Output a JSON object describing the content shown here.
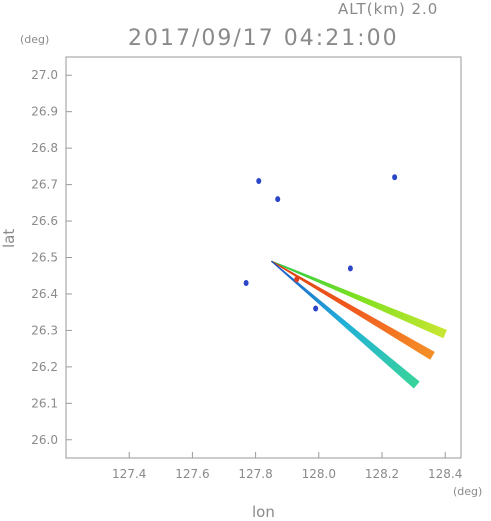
{
  "header": {
    "altitude_label": "ALT(km) 2.0",
    "datetime": "2017/09/17 04:21:00"
  },
  "chart_data": {
    "type": "scatter",
    "xlabel": "lon",
    "ylabel": "lat",
    "x_unit": "(deg)",
    "y_unit": "(deg)",
    "xlim": [
      127.2,
      128.45
    ],
    "ylim": [
      25.95,
      27.05
    ],
    "xticks": [
      "127.4",
      "127.6",
      "127.8",
      "128.0",
      "128.2",
      "128.4"
    ],
    "xtick_values": [
      127.4,
      127.6,
      127.8,
      128.0,
      128.2,
      128.4
    ],
    "yticks": [
      "26.0",
      "26.1",
      "26.2",
      "26.3",
      "26.4",
      "26.5",
      "26.6",
      "26.7",
      "26.8",
      "26.9",
      "27.0"
    ],
    "ytick_values": [
      26.0,
      26.1,
      26.2,
      26.3,
      26.4,
      26.5,
      26.6,
      26.7,
      26.8,
      26.9,
      27.0
    ],
    "origin": {
      "lon": 127.85,
      "lat": 26.49
    },
    "beams": [
      {
        "end": {
          "lon": 128.4,
          "lat": 26.29
        },
        "colors": [
          "#22c84a",
          "#7ee020",
          "#c8e632"
        ]
      },
      {
        "end": {
          "lon": 128.36,
          "lat": 26.23
        },
        "colors": [
          "#d84010",
          "#f05a1e",
          "#f59028"
        ]
      },
      {
        "end": {
          "lon": 128.31,
          "lat": 26.15
        },
        "colors": [
          "#1a50c8",
          "#22b0d8",
          "#38d49a"
        ]
      }
    ],
    "echoes": [
      {
        "lon": 127.81,
        "lat": 26.71,
        "color": "#2b45c8"
      },
      {
        "lon": 128.24,
        "lat": 26.72,
        "color": "#2b45c8"
      },
      {
        "lon": 127.77,
        "lat": 26.43,
        "color": "#2b45c8"
      },
      {
        "lon": 127.99,
        "lat": 26.36,
        "color": "#2b45c8"
      },
      {
        "lon": 127.93,
        "lat": 26.44,
        "color": "#e04020"
      },
      {
        "lon": 128.1,
        "lat": 26.47,
        "color": "#2b45c8"
      },
      {
        "lon": 127.87,
        "lat": 26.66,
        "color": "#2b45c8"
      }
    ]
  }
}
